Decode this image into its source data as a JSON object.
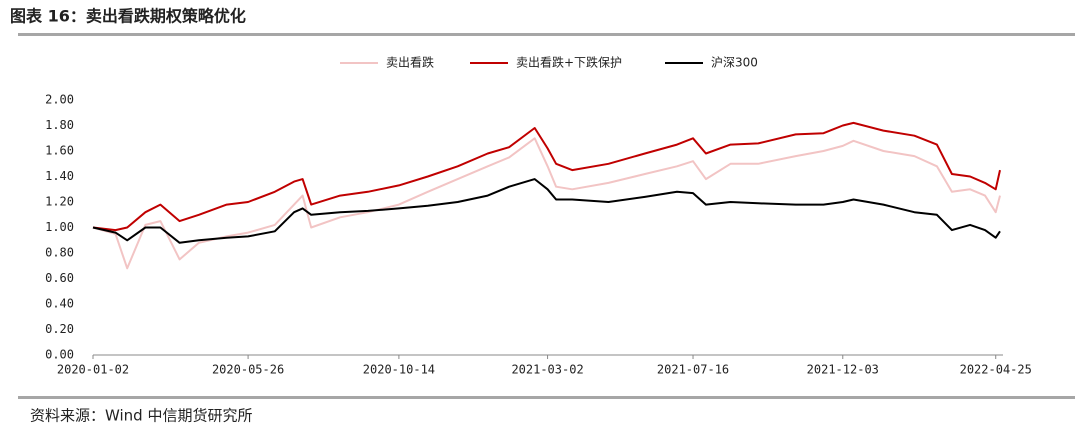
{
  "chart_data": {
    "type": "line",
    "title": "图表 16：卖出看跌期权策略优化",
    "source": "资料来源：Wind 中信期货研究所",
    "x": [
      "2020-01-02",
      "2020-01-23",
      "2020-02-03",
      "2020-02-20",
      "2020-03-05",
      "2020-03-23",
      "2020-04-10",
      "2020-05-06",
      "2020-05-26",
      "2020-06-20",
      "2020-07-08",
      "2020-07-16",
      "2020-07-24",
      "2020-08-20",
      "2020-09-15",
      "2020-10-14",
      "2020-11-10",
      "2020-12-08",
      "2021-01-05",
      "2021-01-25",
      "2021-02-18",
      "2021-03-02",
      "2021-03-10",
      "2021-03-25",
      "2021-04-28",
      "2021-06-01",
      "2021-07-01",
      "2021-07-16",
      "2021-07-28",
      "2021-08-20",
      "2021-09-15",
      "2021-10-20",
      "2021-11-15",
      "2021-12-03",
      "2021-12-13",
      "2022-01-10",
      "2022-02-08",
      "2022-03-01",
      "2022-03-15",
      "2022-04-01",
      "2022-04-15",
      "2022-04-25",
      "2022-04-29"
    ],
    "series": [
      {
        "name": "卖出看跌",
        "color": "#f2c4c4",
        "values": [
          1.0,
          0.95,
          0.68,
          1.02,
          1.05,
          0.75,
          0.88,
          0.93,
          0.96,
          1.02,
          1.18,
          1.25,
          1.0,
          1.08,
          1.12,
          1.18,
          1.28,
          1.38,
          1.48,
          1.55,
          1.7,
          1.48,
          1.32,
          1.3,
          1.35,
          1.42,
          1.48,
          1.52,
          1.38,
          1.5,
          1.5,
          1.56,
          1.6,
          1.64,
          1.68,
          1.6,
          1.56,
          1.48,
          1.28,
          1.3,
          1.25,
          1.12,
          1.25
        ]
      },
      {
        "name": "卖出看跌+下跌保护",
        "color": "#c00000",
        "values": [
          1.0,
          0.98,
          1.0,
          1.12,
          1.18,
          1.05,
          1.1,
          1.18,
          1.2,
          1.28,
          1.36,
          1.38,
          1.18,
          1.25,
          1.28,
          1.33,
          1.4,
          1.48,
          1.58,
          1.63,
          1.78,
          1.62,
          1.5,
          1.45,
          1.5,
          1.58,
          1.65,
          1.7,
          1.58,
          1.65,
          1.66,
          1.73,
          1.74,
          1.8,
          1.82,
          1.76,
          1.72,
          1.65,
          1.42,
          1.4,
          1.35,
          1.3,
          1.45
        ]
      },
      {
        "name": "沪深300",
        "color": "#000000",
        "values": [
          1.0,
          0.96,
          0.9,
          1.0,
          1.0,
          0.88,
          0.9,
          0.92,
          0.93,
          0.97,
          1.12,
          1.15,
          1.1,
          1.12,
          1.13,
          1.15,
          1.17,
          1.2,
          1.25,
          1.32,
          1.38,
          1.3,
          1.22,
          1.22,
          1.2,
          1.24,
          1.28,
          1.27,
          1.18,
          1.2,
          1.19,
          1.18,
          1.18,
          1.2,
          1.22,
          1.18,
          1.12,
          1.1,
          0.98,
          1.02,
          0.98,
          0.92,
          0.97
        ]
      }
    ],
    "xlim": [
      "2020-01-02",
      "2022-04-29"
    ],
    "xticks": [
      "2020-01-02",
      "2020-05-26",
      "2020-10-14",
      "2021-03-02",
      "2021-07-16",
      "2021-12-03",
      "2022-04-25"
    ],
    "ylim": [
      0,
      2
    ],
    "yticks": [
      {
        "value": 0,
        "label": "0.00"
      },
      {
        "value": 0.2,
        "label": "0.20"
      },
      {
        "value": 0.4,
        "label": "0.40"
      },
      {
        "value": 0.6,
        "label": "0.60"
      },
      {
        "value": 0.8,
        "label": "0.80"
      },
      {
        "value": 1,
        "label": "1.00"
      },
      {
        "value": 1.2,
        "label": "1.20"
      },
      {
        "value": 1.4,
        "label": "1.40"
      },
      {
        "value": 1.6,
        "label": "1.60"
      },
      {
        "value": 1.8,
        "label": "1.80"
      },
      {
        "value": 2,
        "label": "2.00"
      }
    ],
    "grid": false,
    "legend": "top"
  }
}
